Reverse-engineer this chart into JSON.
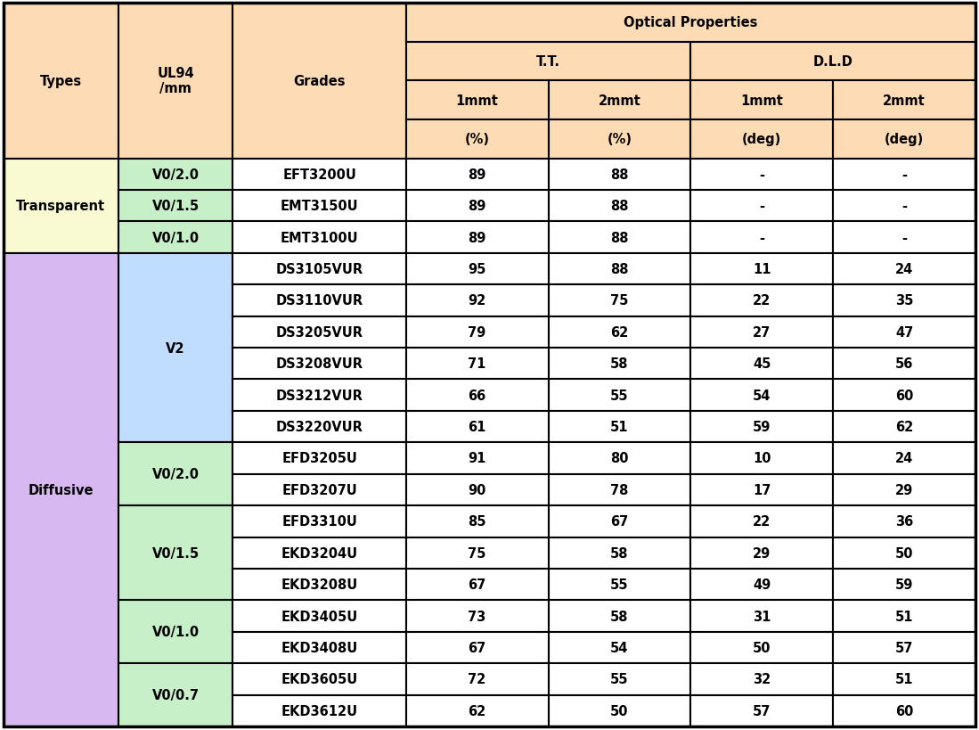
{
  "header_bg": "#FDDBB4",
  "transparent_type_bg": "#FAFAD2",
  "transparent_ul_bg": "#C8F0C8",
  "diffusive_type_bg": "#D8B8F0",
  "v2_ul_bg": "#C0DCFF",
  "v0_green_bg": "#C8F0C8",
  "data_bg": "#FFFFFF",
  "border_color": "#000000",
  "col_props": [
    0.118,
    0.118,
    0.178,
    0.1465,
    0.1465,
    0.1465,
    0.1465
  ],
  "rows": [
    {
      "type": "Transparent",
      "ul": "V0/2.0",
      "grade": "EFT3200U",
      "tt1": "89",
      "tt2": "88",
      "dld1": "-",
      "dld2": "-"
    },
    {
      "type": "Transparent",
      "ul": "V0/1.5",
      "grade": "EMT3150U",
      "tt1": "89",
      "tt2": "88",
      "dld1": "-",
      "dld2": "-"
    },
    {
      "type": "Transparent",
      "ul": "V0/1.0",
      "grade": "EMT3100U",
      "tt1": "89",
      "tt2": "88",
      "dld1": "-",
      "dld2": "-"
    },
    {
      "type": "Diffusive",
      "ul": "V2",
      "grade": "DS3105VUR",
      "tt1": "95",
      "tt2": "88",
      "dld1": "11",
      "dld2": "24"
    },
    {
      "type": "Diffusive",
      "ul": "V2",
      "grade": "DS3110VUR",
      "tt1": "92",
      "tt2": "75",
      "dld1": "22",
      "dld2": "35"
    },
    {
      "type": "Diffusive",
      "ul": "V2",
      "grade": "DS3205VUR",
      "tt1": "79",
      "tt2": "62",
      "dld1": "27",
      "dld2": "47"
    },
    {
      "type": "Diffusive",
      "ul": "V2",
      "grade": "DS3208VUR",
      "tt1": "71",
      "tt2": "58",
      "dld1": "45",
      "dld2": "56"
    },
    {
      "type": "Diffusive",
      "ul": "V2",
      "grade": "DS3212VUR",
      "tt1": "66",
      "tt2": "55",
      "dld1": "54",
      "dld2": "60"
    },
    {
      "type": "Diffusive",
      "ul": "V2",
      "grade": "DS3220VUR",
      "tt1": "61",
      "tt2": "51",
      "dld1": "59",
      "dld2": "62"
    },
    {
      "type": "Diffusive",
      "ul": "V0/2.0",
      "grade": "EFD3205U",
      "tt1": "91",
      "tt2": "80",
      "dld1": "10",
      "dld2": "24"
    },
    {
      "type": "Diffusive",
      "ul": "V0/2.0",
      "grade": "EFD3207U",
      "tt1": "90",
      "tt2": "78",
      "dld1": "17",
      "dld2": "29"
    },
    {
      "type": "Diffusive",
      "ul": "V0/1.5",
      "grade": "EFD3310U",
      "tt1": "85",
      "tt2": "67",
      "dld1": "22",
      "dld2": "36"
    },
    {
      "type": "Diffusive",
      "ul": "V0/1.5",
      "grade": "EKD3204U",
      "tt1": "75",
      "tt2": "58",
      "dld1": "29",
      "dld2": "50"
    },
    {
      "type": "Diffusive",
      "ul": "V0/1.5",
      "grade": "EKD3208U",
      "tt1": "67",
      "tt2": "55",
      "dld1": "49",
      "dld2": "59"
    },
    {
      "type": "Diffusive",
      "ul": "V0/1.0",
      "grade": "EKD3405U",
      "tt1": "73",
      "tt2": "58",
      "dld1": "31",
      "dld2": "51"
    },
    {
      "type": "Diffusive",
      "ul": "V0/1.0",
      "grade": "EKD3408U",
      "tt1": "67",
      "tt2": "54",
      "dld1": "50",
      "dld2": "57"
    },
    {
      "type": "Diffusive",
      "ul": "V0/0.7",
      "grade": "EKD3605U",
      "tt1": "72",
      "tt2": "55",
      "dld1": "32",
      "dld2": "51"
    },
    {
      "type": "Diffusive",
      "ul": "V0/0.7",
      "grade": "EKD3612U",
      "tt1": "62",
      "tt2": "50",
      "dld1": "57",
      "dld2": "60"
    }
  ],
  "type_spans": [
    [
      "Transparent",
      0,
      3,
      "#FAFAD2"
    ],
    [
      "Diffusive",
      3,
      18,
      "#D8B8F0"
    ]
  ],
  "ul_spans": [
    [
      "V0/2.0",
      0,
      1,
      "#C8F0C8"
    ],
    [
      "V0/1.5",
      1,
      2,
      "#C8F0C8"
    ],
    [
      "V0/1.0",
      2,
      3,
      "#C8F0C8"
    ],
    [
      "V2",
      3,
      9,
      "#C0DCFF"
    ],
    [
      "V0/2.0",
      9,
      11,
      "#C8F0C8"
    ],
    [
      "V0/1.5",
      11,
      14,
      "#C8F0C8"
    ],
    [
      "V0/1.0",
      14,
      16,
      "#C8F0C8"
    ],
    [
      "V0/0.7",
      16,
      18,
      "#C8F0C8"
    ]
  ]
}
